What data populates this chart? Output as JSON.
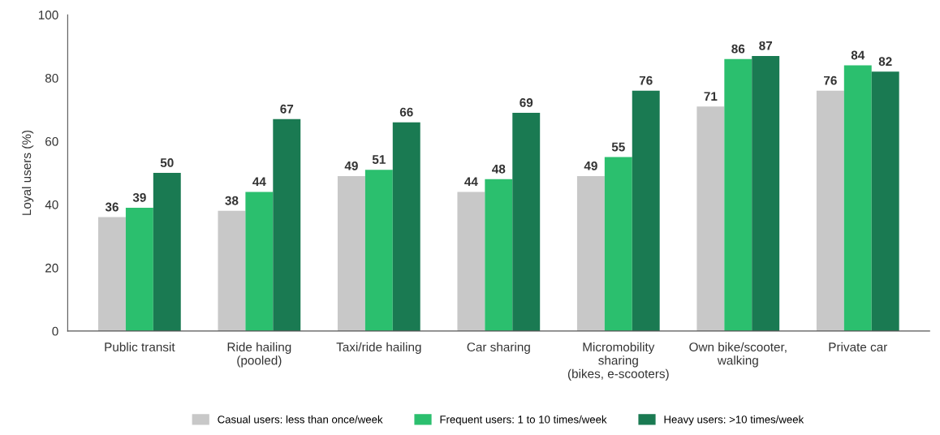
{
  "chart_data": {
    "type": "bar",
    "ylabel": "Loyal users (%)",
    "categories": [
      "Public transit",
      "Ride hailing\n(pooled)",
      "Taxi/ride hailing",
      "Car sharing",
      "Micromobility\nsharing\n(bikes, e-scooters)",
      "Own bike/scooter,\nwalking",
      "Private car"
    ],
    "series": [
      {
        "name": "Casual users: less than once/week",
        "color": "#c8c8c8",
        "values": [
          36,
          38,
          49,
          44,
          49,
          71,
          76
        ]
      },
      {
        "name": "Frequent users: 1 to 10 times/week",
        "color": "#2bbf6e",
        "values": [
          39,
          44,
          51,
          48,
          55,
          86,
          84
        ]
      },
      {
        "name": "Heavy users: >10 times/week",
        "color": "#1a7a52",
        "values": [
          50,
          67,
          66,
          69,
          76,
          87,
          82
        ]
      }
    ],
    "ylim": [
      0,
      100
    ],
    "yticks": [
      0,
      20,
      40,
      60,
      80,
      100
    ],
    "data_labels": true,
    "grid": false,
    "legend": "bottom"
  }
}
